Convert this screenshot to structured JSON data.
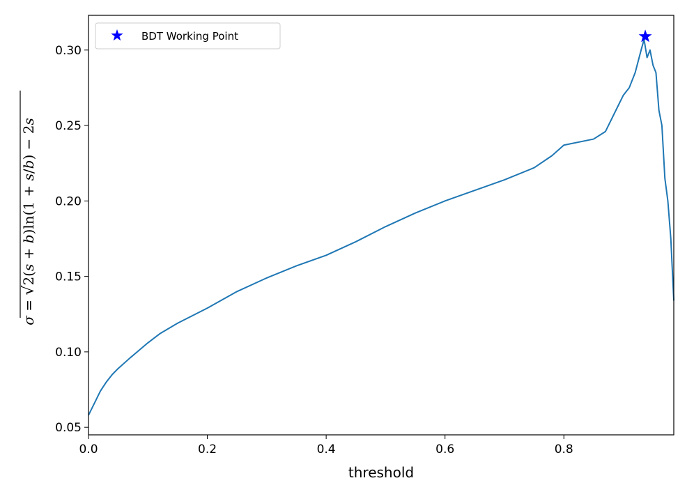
{
  "chart_data": {
    "type": "line",
    "xlabel": "threshold",
    "ylabel": "σ = √2(s + b)ln(1 + s/b) − 2s",
    "xlim": [
      0.0,
      0.985
    ],
    "ylim": [
      0.045,
      0.323
    ],
    "xticks": [
      0.0,
      0.2,
      0.4,
      0.6,
      0.8
    ],
    "xtick_labels": [
      "0.0",
      "0.2",
      "0.4",
      "0.6",
      "0.8"
    ],
    "yticks": [
      0.05,
      0.1,
      0.15,
      0.2,
      0.25,
      0.3
    ],
    "ytick_labels": [
      "0.05",
      "0.10",
      "0.15",
      "0.20",
      "0.25",
      "0.30"
    ],
    "grid": false,
    "legend_position": "top-left",
    "series": [
      {
        "color": "#1f77b4",
        "x": [
          0.0,
          0.01,
          0.02,
          0.03,
          0.04,
          0.05,
          0.07,
          0.1,
          0.12,
          0.15,
          0.2,
          0.25,
          0.3,
          0.35,
          0.4,
          0.45,
          0.5,
          0.55,
          0.6,
          0.65,
          0.7,
          0.75,
          0.78,
          0.8,
          0.85,
          0.87,
          0.9,
          0.91,
          0.92,
          0.93,
          0.935,
          0.94,
          0.945,
          0.95,
          0.955,
          0.96,
          0.965,
          0.97,
          0.975,
          0.98,
          0.985
        ],
        "y": [
          0.058,
          0.066,
          0.074,
          0.08,
          0.085,
          0.089,
          0.096,
          0.106,
          0.112,
          0.119,
          0.129,
          0.14,
          0.149,
          0.157,
          0.164,
          0.173,
          0.183,
          0.192,
          0.2,
          0.207,
          0.214,
          0.222,
          0.23,
          0.237,
          0.241,
          0.246,
          0.27,
          0.275,
          0.285,
          0.3,
          0.307,
          0.295,
          0.3,
          0.29,
          0.285,
          0.26,
          0.25,
          0.215,
          0.2,
          0.175,
          0.134
        ]
      }
    ],
    "working_point": {
      "label": "BDT Working Point",
      "x": 0.937,
      "y": 0.309,
      "color": "#0000ff",
      "marker": "star"
    }
  }
}
